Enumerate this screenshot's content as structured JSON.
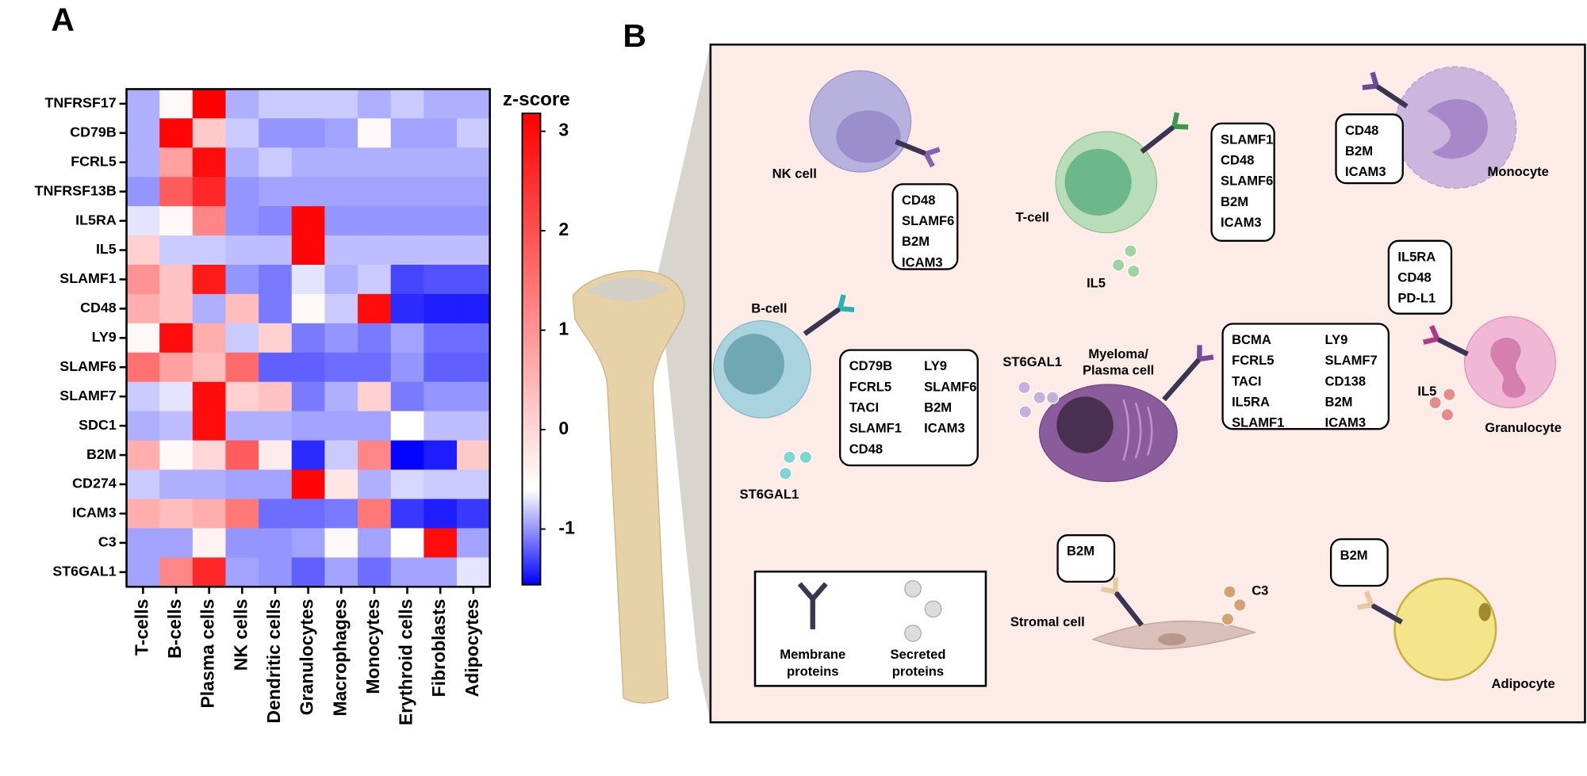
{
  "chart_data": {
    "type": "heatmap",
    "colorbar_title": "z-score",
    "rows": [
      "TNFRSF17",
      "CD79B",
      "FCRL5",
      "TNFRSF13B",
      "IL5RA",
      "IL5",
      "SLAMF1",
      "CD48",
      "LY9",
      "SLAMF6",
      "SLAMF7",
      "SDC1",
      "B2M",
      "CD274",
      "ICAM3",
      "C3",
      "ST6GAL1"
    ],
    "columns": [
      "T-cells",
      "B-cells",
      "Plasma cells",
      "NK cells",
      "Dendritic cells",
      "Granulocytes",
      "Macrophages",
      "Monocytes",
      "Erythroid cells",
      "Fibroblasts",
      "Adipocytes"
    ],
    "values": [
      [
        -0.9,
        -0.5,
        3.2,
        -0.9,
        -0.8,
        -0.8,
        -0.8,
        -0.9,
        -0.8,
        -0.9,
        -0.9
      ],
      [
        -0.9,
        3.1,
        0.2,
        -0.8,
        -1.0,
        -1.0,
        -0.95,
        -0.5,
        -0.95,
        -0.95,
        -0.8
      ],
      [
        -0.9,
        0.8,
        3.0,
        -0.9,
        -0.8,
        -0.9,
        -0.9,
        -0.9,
        -0.9,
        -0.9,
        -0.9
      ],
      [
        -1.0,
        1.8,
        2.6,
        -1.0,
        -0.95,
        -0.95,
        -0.95,
        -0.95,
        -0.95,
        -0.95,
        -0.95
      ],
      [
        -0.7,
        -0.5,
        1.2,
        -1.0,
        -1.05,
        3.1,
        -1.0,
        -1.0,
        -1.0,
        -1.0,
        -1.0
      ],
      [
        0.1,
        -0.8,
        -0.8,
        -0.85,
        -0.85,
        3.1,
        -0.85,
        -0.85,
        -0.85,
        -0.85,
        -0.85
      ],
      [
        1.0,
        0.3,
        2.8,
        -1.0,
        -1.1,
        -0.7,
        -0.9,
        -0.8,
        -1.3,
        -1.25,
        -1.25
      ],
      [
        0.6,
        0.3,
        -0.9,
        0.4,
        -1.1,
        -0.5,
        -0.8,
        3.0,
        -1.4,
        -1.45,
        -1.45
      ],
      [
        -0.5,
        3.0,
        0.6,
        -0.8,
        0.1,
        -1.1,
        -1.0,
        -1.1,
        -0.95,
        -1.15,
        -1.15
      ],
      [
        1.5,
        0.8,
        0.4,
        1.6,
        -1.2,
        -1.2,
        -1.15,
        -1.15,
        -1.0,
        -1.2,
        -1.2
      ],
      [
        -0.8,
        -0.7,
        3.0,
        0.1,
        0.3,
        -1.1,
        -0.9,
        0.1,
        -1.1,
        -1.0,
        -1.0
      ],
      [
        -0.9,
        -0.85,
        3.0,
        -0.9,
        -0.9,
        -0.95,
        -0.95,
        -0.95,
        -0.6,
        -0.85,
        -0.85
      ],
      [
        0.6,
        -0.5,
        0.0,
        1.8,
        -0.3,
        -1.4,
        -0.8,
        1.2,
        -1.55,
        -1.45,
        0.2
      ],
      [
        -0.8,
        -0.9,
        -0.9,
        -0.95,
        -0.95,
        3.1,
        -0.2,
        -0.9,
        -0.75,
        -0.8,
        -0.8
      ],
      [
        0.6,
        0.4,
        0.6,
        1.4,
        -1.15,
        -1.15,
        -1.1,
        1.4,
        -1.35,
        -1.45,
        -1.35
      ],
      [
        -0.95,
        -0.95,
        -0.4,
        -1.0,
        -1.0,
        -0.95,
        -0.5,
        -0.95,
        -0.6,
        3.0,
        -0.95
      ],
      [
        -0.95,
        1.2,
        2.6,
        -0.95,
        -1.0,
        -1.2,
        -0.95,
        -1.15,
        -0.95,
        -0.95,
        -0.7
      ]
    ],
    "zlim": [
      -1.56,
      3.18
    ],
    "zticks": [
      -1,
      0,
      1,
      2,
      3
    ],
    "color_scale": [
      {
        "value": -1.56,
        "color": "#0000ff"
      },
      {
        "value": -0.6,
        "color": "#ffffff"
      },
      {
        "value": 3.18,
        "color": "#ff0000"
      }
    ]
  },
  "panel_labels": [
    "A",
    "B"
  ],
  "diagram": {
    "cells": [
      {
        "name": [
          "NK cell"
        ],
        "surface": [
          "CD48",
          "SLAMF6",
          "B2M",
          "ICAM3"
        ]
      },
      {
        "name": [
          "T-cell"
        ],
        "surface": [
          "SLAMF1",
          "CD48",
          "SLAMF6",
          "B2M",
          "ICAM3"
        ],
        "secreted": "IL5"
      },
      {
        "name": [
          "Monocyte"
        ],
        "surface": [
          "CD48",
          "B2M",
          "ICAM3"
        ]
      },
      {
        "name": [
          "B-cell"
        ],
        "surface": [
          "CD79B",
          "FCRL5",
          "TACI",
          "SLAMF1",
          "CD48",
          "LY9",
          "SLAMF6",
          "B2M",
          "ICAM3"
        ],
        "secreted": "ST6GAL1"
      },
      {
        "name": [
          "Myeloma/",
          "Plasma cell"
        ],
        "surface": [
          "BCMA",
          "FCRL5",
          "TACI",
          "IL5RA",
          "SLAMF1",
          "LY9",
          "SLAMF7",
          "CD138",
          "B2M",
          "ICAM3"
        ],
        "secreted": "ST6GAL1"
      },
      {
        "name": [
          "Granulocyte"
        ],
        "surface": [
          "IL5RA",
          "CD48",
          "PD-L1"
        ],
        "secreted": "IL5"
      },
      {
        "name": [
          "Stromal cell"
        ],
        "surface": [
          "B2M"
        ],
        "secreted": "C3"
      },
      {
        "name": [
          "Adipocyte"
        ],
        "surface": [
          "B2M"
        ]
      }
    ],
    "legend": {
      "membrane": [
        "Membrane",
        "proteins"
      ],
      "secreted": [
        "Secreted",
        "proteins"
      ]
    }
  }
}
